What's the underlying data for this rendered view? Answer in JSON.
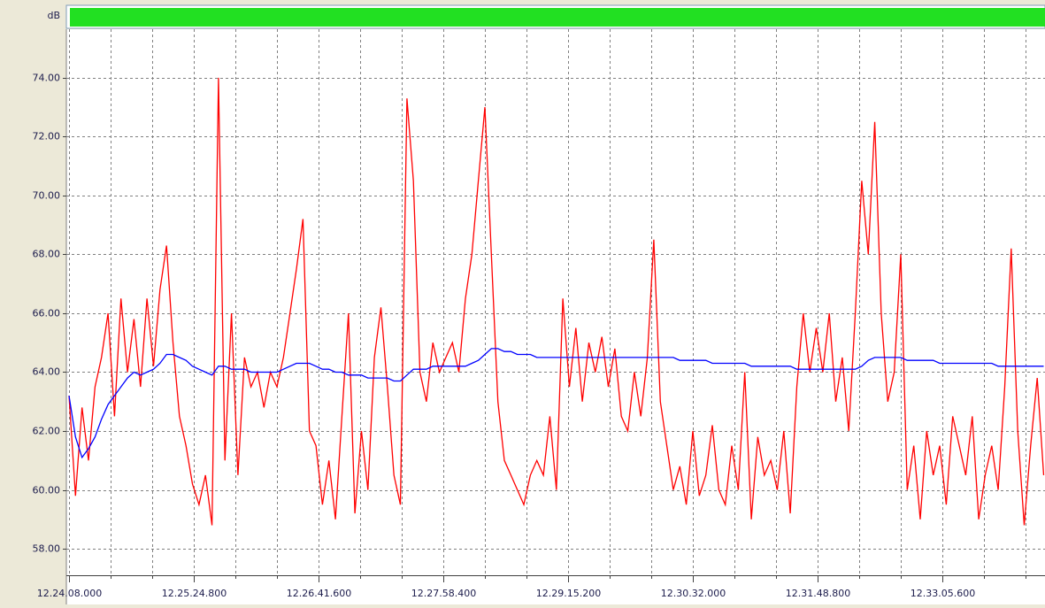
{
  "chart_data": {
    "type": "line",
    "y_label": "dB",
    "xlim": [
      44648,
      45248.8
    ],
    "ylim": [
      57.16,
      75.74
    ],
    "grid": true,
    "yticks": [
      {
        "value": 58,
        "label": "58.00"
      },
      {
        "value": 60,
        "label": "60.00"
      },
      {
        "value": 62,
        "label": "62.00"
      },
      {
        "value": 64,
        "label": "64.00"
      },
      {
        "value": 66,
        "label": "66.00"
      },
      {
        "value": 68,
        "label": "68.00"
      },
      {
        "value": 70,
        "label": "70.00"
      },
      {
        "value": 72,
        "label": "72.00"
      },
      {
        "value": 74,
        "label": "74.00"
      }
    ],
    "xticks": [
      {
        "value": 44648,
        "label": "12.24.08.000"
      },
      {
        "value": 44724.8,
        "label": "12.25.24.800"
      },
      {
        "value": 44801.6,
        "label": "12.26.41.600"
      },
      {
        "value": 44878.4,
        "label": "12.27.58.400"
      },
      {
        "value": 44955.2,
        "label": "12.29.15.200"
      },
      {
        "value": 45032,
        "label": "12.30.32.000"
      },
      {
        "value": 45108.8,
        "label": "12.31.48.800"
      },
      {
        "value": 45185.6,
        "label": "12.33.05.600"
      }
    ],
    "xgrid": [
      44673.6,
      44699.2,
      44750.4,
      44776,
      44827.2,
      44852.8,
      44904,
      44929.6,
      44980.8,
      45006.4,
      45057.6,
      45083.2,
      45134.4,
      45160,
      45211.2,
      45236.8
    ],
    "x": [
      44648,
      44652,
      44656,
      44660,
      44664,
      44668,
      44672,
      44676,
      44680,
      44684,
      44688,
      44692,
      44696,
      44700,
      44704,
      44708,
      44712,
      44716,
      44720,
      44724,
      44728,
      44732,
      44736,
      44740,
      44744,
      44748,
      44752,
      44756,
      44760,
      44764,
      44768,
      44772,
      44776,
      44780,
      44784,
      44788,
      44792,
      44796,
      44800,
      44804,
      44808,
      44812,
      44816,
      44820,
      44824,
      44828,
      44832,
      44836,
      44840,
      44844,
      44848,
      44852,
      44856,
      44860,
      44864,
      44868,
      44872,
      44876,
      44880,
      44884,
      44888,
      44892,
      44896,
      44900,
      44904,
      44908,
      44912,
      44916,
      44920,
      44924,
      44928,
      44932,
      44936,
      44940,
      44944,
      44948,
      44952,
      44956,
      44960,
      44964,
      44968,
      44972,
      44976,
      44980,
      44984,
      44988,
      44992,
      44996,
      45000,
      45004,
      45008,
      45012,
      45016,
      45020,
      45024,
      45028,
      45032,
      45036,
      45040,
      45044,
      45048,
      45052,
      45056,
      45060,
      45064,
      45068,
      45072,
      45076,
      45080,
      45084,
      45088,
      45092,
      45096,
      45100,
      45104,
      45108,
      45112,
      45116,
      45120,
      45124,
      45128,
      45132,
      45136,
      45140,
      45144,
      45148,
      45152,
      45156,
      45160,
      45164,
      45168,
      45172,
      45176,
      45180,
      45184,
      45188,
      45192,
      45196,
      45200,
      45204,
      45208,
      45212,
      45216,
      45220,
      45224,
      45228,
      45232,
      45236,
      45240,
      45244,
      45248
    ],
    "series": [
      {
        "color": "#ff0000",
        "values": [
          63.2,
          59.8,
          62.8,
          61.0,
          63.5,
          64.5,
          66.0,
          62.5,
          66.5,
          64.0,
          65.8,
          63.5,
          66.5,
          64.2,
          66.8,
          68.3,
          65.0,
          62.5,
          61.5,
          60.2,
          59.5,
          60.5,
          58.8,
          74.0,
          61.0,
          66.0,
          60.5,
          64.5,
          63.5,
          64.0,
          62.8,
          64.0,
          63.5,
          64.5,
          66.0,
          67.5,
          69.2,
          62.0,
          61.5,
          59.5,
          61.0,
          59.0,
          62.5,
          66.0,
          59.2,
          62.0,
          60.0,
          64.5,
          66.2,
          63.5,
          60.5,
          59.5,
          73.3,
          70.5,
          64.0,
          63.0,
          65.0,
          64.0,
          64.5,
          65.0,
          64.0,
          66.5,
          68.0,
          70.5,
          73.0,
          68.0,
          63.0,
          61.0,
          60.5,
          60.0,
          59.5,
          60.5,
          61.0,
          60.5,
          62.5,
          60.0,
          66.5,
          63.5,
          65.5,
          63.0,
          65.0,
          64.0,
          65.2,
          63.5,
          64.8,
          62.5,
          62.0,
          64.0,
          62.5,
          64.5,
          68.5,
          63.0,
          61.5,
          60.0,
          60.8,
          59.5,
          62.0,
          59.8,
          60.5,
          62.2,
          60.0,
          59.5,
          61.5,
          60.0,
          64.0,
          59.0,
          61.8,
          60.5,
          61.0,
          60.0,
          62.0,
          59.2,
          63.5,
          66.0,
          64.0,
          65.5,
          64.0,
          66.0,
          63.0,
          64.5,
          62.0,
          66.0,
          70.5,
          68.0,
          72.5,
          66.0,
          63.0,
          64.0,
          68.0,
          60.0,
          61.5,
          59.0,
          62.0,
          60.5,
          61.5,
          59.5,
          62.5,
          61.5,
          60.5,
          62.5,
          59.0,
          60.5,
          61.5,
          60.0,
          63.5,
          68.2,
          62.0,
          58.8,
          61.5,
          63.8,
          60.5
        ]
      },
      {
        "color": "#0000ff",
        "values": [
          63.2,
          61.8,
          61.1,
          61.4,
          61.8,
          62.4,
          62.9,
          63.2,
          63.5,
          63.8,
          64.0,
          63.9,
          64.0,
          64.1,
          64.3,
          64.6,
          64.6,
          64.5,
          64.4,
          64.2,
          64.1,
          64.0,
          63.9,
          64.2,
          64.2,
          64.1,
          64.1,
          64.1,
          64.0,
          64.0,
          64.0,
          64.0,
          64.0,
          64.1,
          64.2,
          64.3,
          64.3,
          64.3,
          64.2,
          64.1,
          64.1,
          64.0,
          64.0,
          63.9,
          63.9,
          63.9,
          63.8,
          63.8,
          63.8,
          63.8,
          63.7,
          63.7,
          63.9,
          64.1,
          64.1,
          64.1,
          64.2,
          64.2,
          64.2,
          64.2,
          64.2,
          64.2,
          64.3,
          64.4,
          64.6,
          64.8,
          64.8,
          64.7,
          64.7,
          64.6,
          64.6,
          64.6,
          64.5,
          64.5,
          64.5,
          64.5,
          64.5,
          64.5,
          64.5,
          64.5,
          64.5,
          64.5,
          64.5,
          64.5,
          64.5,
          64.5,
          64.5,
          64.5,
          64.5,
          64.5,
          64.5,
          64.5,
          64.5,
          64.5,
          64.4,
          64.4,
          64.4,
          64.4,
          64.4,
          64.3,
          64.3,
          64.3,
          64.3,
          64.3,
          64.3,
          64.2,
          64.2,
          64.2,
          64.2,
          64.2,
          64.2,
          64.2,
          64.1,
          64.1,
          64.1,
          64.1,
          64.1,
          64.1,
          64.1,
          64.1,
          64.1,
          64.1,
          64.2,
          64.4,
          64.5,
          64.5,
          64.5,
          64.5,
          64.5,
          64.4,
          64.4,
          64.4,
          64.4,
          64.4,
          64.3,
          64.3,
          64.3,
          64.3,
          64.3,
          64.3,
          64.3,
          64.3,
          64.3,
          64.2,
          64.2,
          64.2,
          64.2,
          64.2,
          64.2,
          64.2,
          64.2
        ]
      }
    ]
  }
}
